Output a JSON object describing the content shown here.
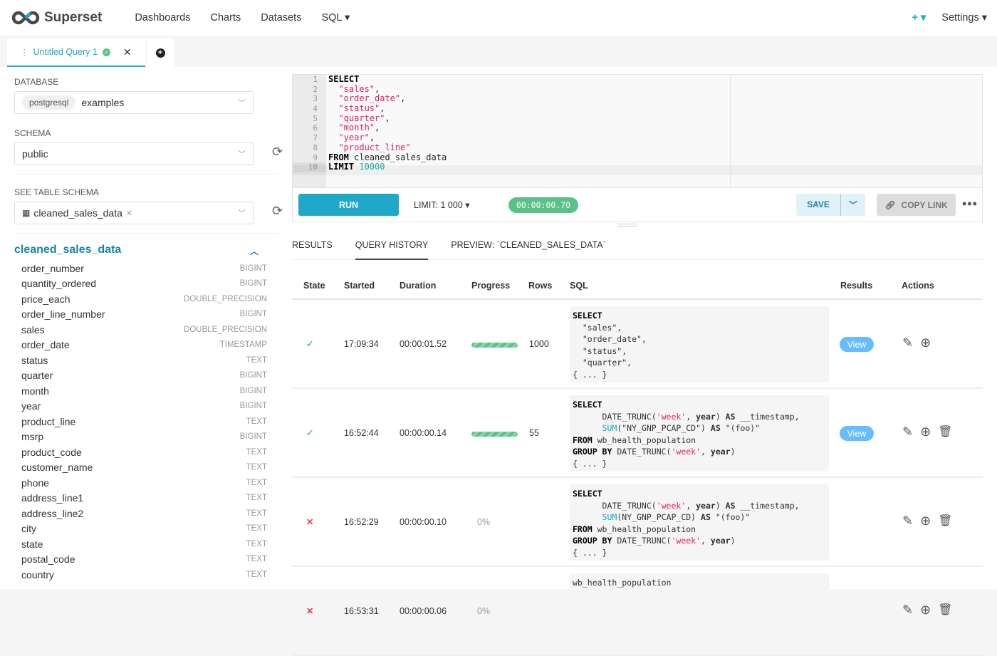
{
  "header": {
    "brand": "Superset",
    "nav": [
      "Dashboards",
      "Charts",
      "Datasets",
      "SQL ▾"
    ],
    "plus": "+ ▾",
    "settings": "Settings ▾"
  },
  "tab": {
    "title": "Untitled Query 1",
    "add": "+"
  },
  "left": {
    "database_label": "DATABASE",
    "db_engine": "postgresql",
    "db_name": "examples",
    "schema_label": "SCHEMA",
    "schema": "public",
    "table_label": "SEE TABLE SCHEMA",
    "table": "cleaned_sales_data",
    "table_title": "cleaned_sales_data",
    "columns": [
      [
        "order_number",
        "BIGINT"
      ],
      [
        "quantity_ordered",
        "BIGINT"
      ],
      [
        "price_each",
        "DOUBLE_PRECISION"
      ],
      [
        "order_line_number",
        "BIGINT"
      ],
      [
        "sales",
        "DOUBLE_PRECISION"
      ],
      [
        "order_date",
        "TIMESTAMP"
      ],
      [
        "status",
        "TEXT"
      ],
      [
        "quarter",
        "BIGINT"
      ],
      [
        "month",
        "BIGINT"
      ],
      [
        "year",
        "BIGINT"
      ],
      [
        "product_line",
        "TEXT"
      ],
      [
        "msrp",
        "BIGINT"
      ],
      [
        "product_code",
        "TEXT"
      ],
      [
        "customer_name",
        "TEXT"
      ],
      [
        "phone",
        "TEXT"
      ],
      [
        "address_line1",
        "TEXT"
      ],
      [
        "address_line2",
        "TEXT"
      ],
      [
        "city",
        "TEXT"
      ],
      [
        "state",
        "TEXT"
      ],
      [
        "postal_code",
        "TEXT"
      ],
      [
        "country",
        "TEXT"
      ]
    ]
  },
  "editor": {
    "lines": [
      [
        [
          "kw",
          "SELECT"
        ]
      ],
      [
        [
          "",
          "  "
        ],
        [
          "str",
          "\"sales\""
        ],
        [
          "",
          ","
        ]
      ],
      [
        [
          "",
          "  "
        ],
        [
          "str",
          "\"order_date\""
        ],
        [
          "",
          ","
        ]
      ],
      [
        [
          "",
          "  "
        ],
        [
          "str",
          "\"status\""
        ],
        [
          "",
          ","
        ]
      ],
      [
        [
          "",
          "  "
        ],
        [
          "str",
          "\"quarter\""
        ],
        [
          "",
          ","
        ]
      ],
      [
        [
          "",
          "  "
        ],
        [
          "str",
          "\"month\""
        ],
        [
          "",
          ","
        ]
      ],
      [
        [
          "",
          "  "
        ],
        [
          "str",
          "\"year\""
        ],
        [
          "",
          ","
        ]
      ],
      [
        [
          "",
          "  "
        ],
        [
          "str",
          "\"product_line\""
        ]
      ],
      [
        [
          "kw",
          "FROM"
        ],
        [
          "",
          " cleaned_sales_data"
        ]
      ],
      [
        [
          "kw",
          "LIMIT"
        ],
        [
          "num",
          " 10000"
        ]
      ]
    ]
  },
  "toolbar": {
    "run": "RUN",
    "limit": "LIMIT:  1 000   ▾",
    "timer": "00:00:00.70",
    "save": "SAVE",
    "copy": "COPY LINK"
  },
  "result_tabs": [
    "RESULTS",
    "QUERY HISTORY",
    "PREVIEW: `CLEANED_SALES_DATA`"
  ],
  "table": {
    "headers": [
      "State",
      "Started",
      "Duration",
      "Progress",
      "Rows",
      "SQL",
      "Results",
      "Actions"
    ],
    "rows": [
      {
        "state": "success",
        "started": "17:09:34",
        "duration": "00:00:01.52",
        "progress": 100,
        "rows": "1000",
        "view": "View",
        "delete": false,
        "sql": [
          [
            [
              "kw",
              "SELECT"
            ]
          ],
          [
            [
              "",
              "  \"sales\","
            ]
          ],
          [
            [
              "",
              "  \"order_date\","
            ]
          ],
          [
            [
              "",
              "  \"status\","
            ]
          ],
          [
            [
              "",
              "  \"quarter\","
            ]
          ],
          [
            [
              "",
              "{ ... }"
            ]
          ]
        ]
      },
      {
        "state": "success",
        "started": "16:52:44",
        "duration": "00:00:00.14",
        "progress": 100,
        "rows": "55",
        "view": "View",
        "delete": true,
        "sql": [
          [
            [
              "kw",
              "SELECT"
            ]
          ],
          [
            [
              "",
              "      DATE_TRUNC("
            ],
            [
              "str",
              "'week'"
            ],
            [
              "",
              ", "
            ],
            [
              "b",
              "year"
            ],
            [
              "",
              ") "
            ],
            [
              "b",
              "AS"
            ],
            [
              "",
              " __timestamp,"
            ]
          ],
          [
            [
              "",
              "      "
            ],
            [
              "fn",
              "SUM"
            ],
            [
              "",
              "(\"NY_GNP_PCAP_CD\") "
            ],
            [
              "b",
              "AS"
            ],
            [
              "",
              " \"(foo)\""
            ]
          ],
          [
            [
              "kw",
              "FROM"
            ],
            [
              "",
              " wb_health_population"
            ]
          ],
          [
            [
              "kw",
              "GROUP BY"
            ],
            [
              "",
              " DATE_TRUNC("
            ],
            [
              "str",
              "'week'"
            ],
            [
              "",
              ", "
            ],
            [
              "b",
              "year"
            ],
            [
              "",
              ")"
            ]
          ],
          [
            [
              "",
              "{ ... }"
            ]
          ]
        ]
      },
      {
        "state": "failed",
        "started": "16:52:29",
        "duration": "00:00:00.10",
        "progress_text": "0%",
        "rows": "",
        "view": "",
        "delete": true,
        "sql": [
          [
            [
              "kw",
              "SELECT"
            ]
          ],
          [
            [
              "",
              "      DATE_TRUNC("
            ],
            [
              "str",
              "'week'"
            ],
            [
              "",
              ", "
            ],
            [
              "b",
              "year"
            ],
            [
              "",
              ") "
            ],
            [
              "b",
              "AS"
            ],
            [
              "",
              " __timestamp,"
            ]
          ],
          [
            [
              "",
              "      "
            ],
            [
              "fn",
              "SUM"
            ],
            [
              "",
              "(NY_GNP_PCAP_CD) "
            ],
            [
              "b",
              "AS"
            ],
            [
              "",
              " \"(foo)\""
            ]
          ],
          [
            [
              "kw",
              "FROM"
            ],
            [
              "",
              " wb_health_population"
            ]
          ],
          [
            [
              "kw",
              "GROUP BY"
            ],
            [
              "",
              " DATE_TRUNC("
            ],
            [
              "str",
              "'week'"
            ],
            [
              "",
              ", "
            ],
            [
              "b",
              "year"
            ],
            [
              "",
              ")"
            ]
          ],
          [
            [
              "",
              "{ ... }"
            ]
          ]
        ]
      },
      {
        "state": "failed",
        "started": "16:53:31",
        "duration": "00:00:00.06",
        "progress_text": "0%",
        "rows": "",
        "view": "",
        "delete": true,
        "sql": [
          [
            [
              "",
              "wb_health_population"
            ]
          ]
        ]
      }
    ]
  },
  "colors": {
    "primary": "#1fa8c9",
    "success": "#5ac189",
    "error": "#e04355",
    "view": "#66bcfe"
  }
}
